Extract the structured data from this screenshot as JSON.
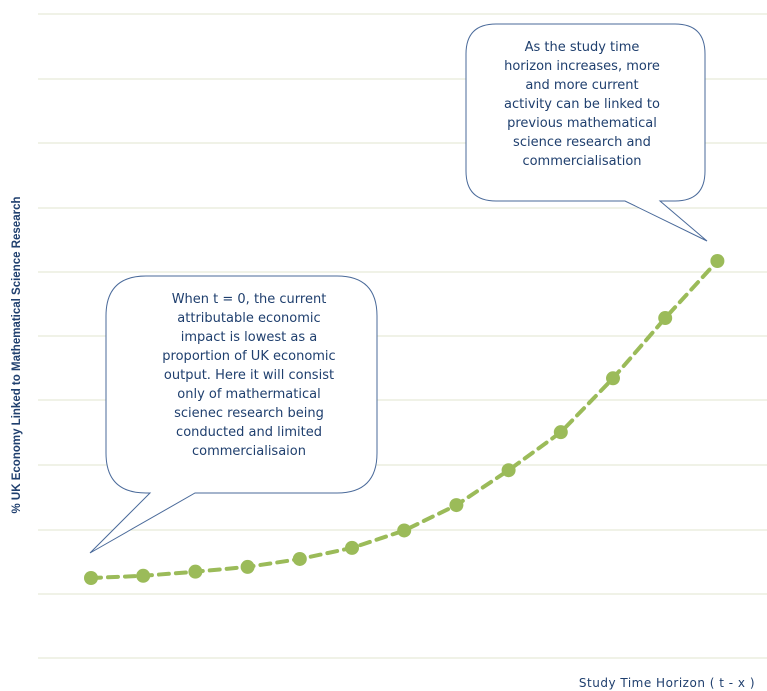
{
  "chart_data": {
    "type": "line",
    "title": "",
    "xlabel": "Study Time Horizon ( t - x )",
    "ylabel": "% UK Economy Linked to Mathematical Science Research",
    "grid": true,
    "series": [
      {
        "values": [
          1.0,
          1.07,
          1.2,
          1.35,
          1.6,
          1.95,
          2.5,
          3.3,
          4.4,
          5.6,
          7.3,
          9.2,
          11.0
        ]
      }
    ],
    "colors": {
      "line": "#9bbb59",
      "gridline": "#e2e6cf",
      "text": "#1f3f6e",
      "callout_border": "#4a6a9a"
    }
  },
  "callouts": [
    {
      "id": "right",
      "lines": [
        "As the study time",
        "horizon increases, more",
        "and more  current",
        "activity can be linked to",
        "previous mathematical",
        "science research and",
        "commercialisation"
      ]
    },
    {
      "id": "left",
      "lines": [
        "When t = 0, the current",
        "attributable economic",
        "impact is lowest as a",
        "proportion of UK economic",
        "output. Here it will consist",
        "only of mathermatical",
        "scienec research being",
        "conducted and limited",
        "commercialisaion"
      ]
    }
  ]
}
